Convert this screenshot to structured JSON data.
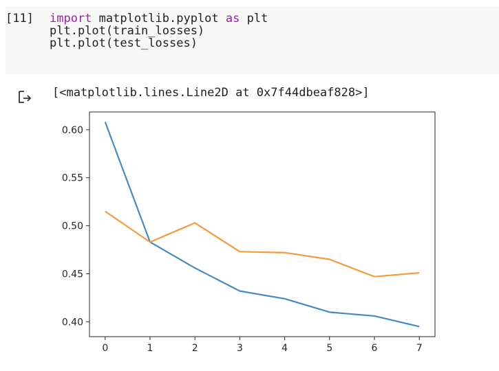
{
  "cell": {
    "prompt": "[11]",
    "code_lines": [
      {
        "segments": [
          {
            "text": "import",
            "kw": true
          },
          {
            "text": " matplotlib.pyplot ",
            "kw": false
          },
          {
            "text": "as",
            "kw": true
          },
          {
            "text": " plt",
            "kw": false
          }
        ]
      },
      {
        "segments": [
          {
            "text": "plt.plot(train_losses)",
            "kw": false
          }
        ]
      },
      {
        "segments": [
          {
            "text": "plt.plot(test_losses)",
            "kw": false
          }
        ]
      }
    ]
  },
  "output": {
    "icon": "output-arrow-icon",
    "text": "[<matplotlib.lines.Line2D at 0x7f44dbeaf828>]"
  },
  "chart_data": {
    "type": "line",
    "x": [
      0,
      1,
      2,
      3,
      4,
      5,
      6,
      7
    ],
    "series": [
      {
        "values": [
          0.608,
          0.483,
          0.456,
          0.432,
          0.424,
          0.41,
          0.406,
          0.395
        ],
        "color": "#4589c3"
      },
      {
        "values": [
          0.515,
          0.483,
          0.503,
          0.473,
          0.472,
          0.465,
          0.447,
          0.451
        ],
        "color": "#f59a3c"
      }
    ],
    "xticks": [
      "0",
      "1",
      "2",
      "3",
      "4",
      "5",
      "6",
      "7"
    ],
    "yticks": [
      0.4,
      0.45,
      0.5,
      0.55,
      0.6
    ],
    "ytick_labels": [
      "0.40",
      "0.45",
      "0.50",
      "0.55",
      "0.60"
    ],
    "xlim": [
      -0.35,
      7.35
    ],
    "ylim": [
      0.3845,
      0.6185
    ],
    "grid": false,
    "title": "",
    "xlabel": "",
    "ylabel": ""
  }
}
